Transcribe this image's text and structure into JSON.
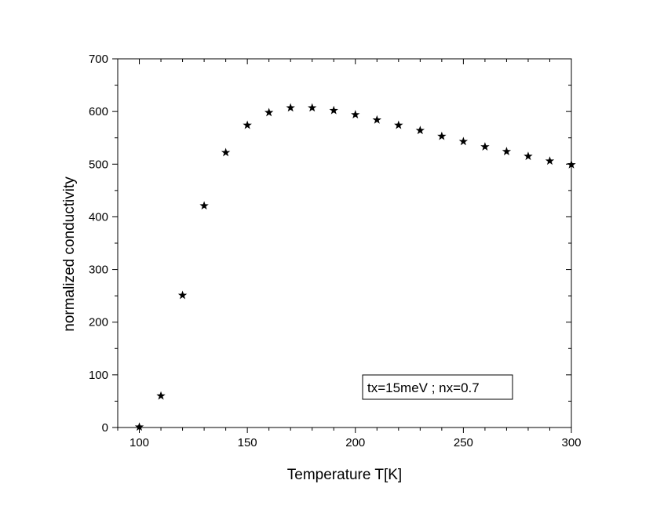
{
  "chart_data": {
    "type": "scatter",
    "xlabel": "Temperature T[K]",
    "ylabel": "normalized conductivity",
    "xlim": [
      90,
      300
    ],
    "ylim": [
      0,
      700
    ],
    "xticks": [
      100,
      150,
      200,
      250,
      300
    ],
    "yticks": [
      0,
      100,
      200,
      300,
      400,
      500,
      600,
      700
    ],
    "marker": "star",
    "grid": false,
    "annotation": "tx=15meV ; nx=0.7",
    "series": [
      {
        "x": [
          100,
          110,
          120,
          130,
          140,
          150,
          160,
          170,
          180,
          190,
          200,
          210,
          220,
          230,
          240,
          250,
          260,
          270,
          280,
          290,
          300
        ],
        "y": [
          1,
          60,
          251,
          421,
          522,
          574,
          598,
          607,
          607,
          602,
          594,
          584,
          574,
          564,
          553,
          543,
          533,
          524,
          515,
          506,
          499
        ]
      }
    ]
  }
}
